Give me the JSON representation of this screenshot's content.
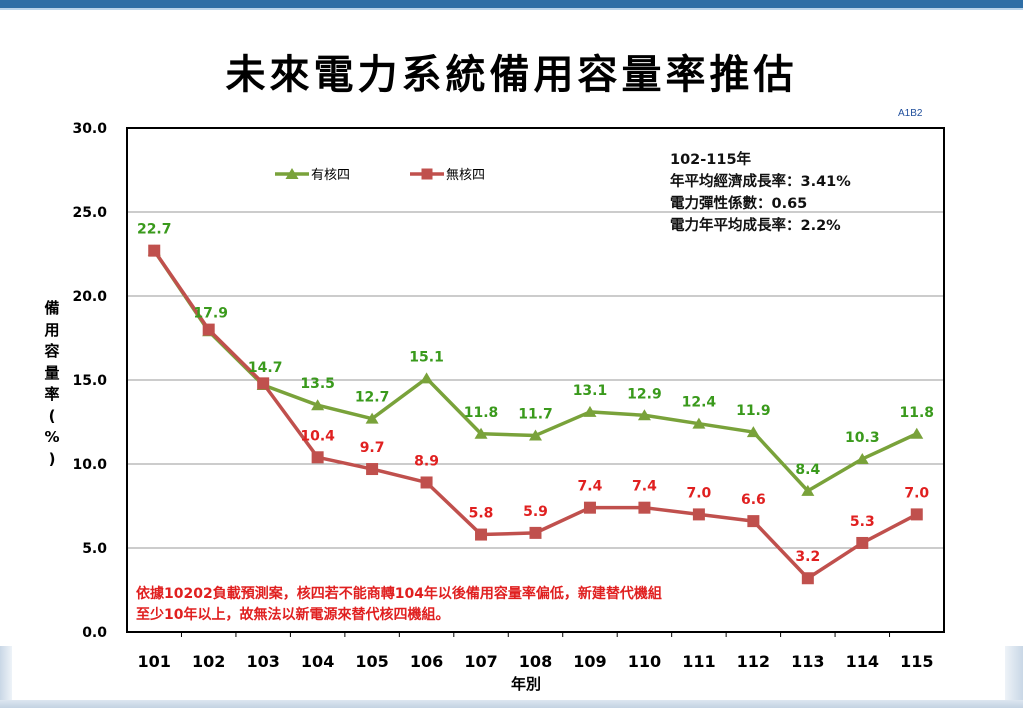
{
  "title": "未來電力系統備用容量率推估",
  "slide_code": "A1B2",
  "info_box": {
    "line1": "102-115年",
    "line2": "年平均經濟成長率：3.41%",
    "line3": "電力彈性係數：0.65",
    "line4": "電力年平均成長率：2.2%"
  },
  "note": {
    "line1": "依據10202負載預測案，核四若不能商轉104年以後備用容量率偏低，新建替代機組",
    "line2": "至少10年以上，故無法以新電源來替代核四機組。"
  },
  "colors": {
    "with_nuclear4": "#79a23a",
    "without_nuclear4": "#c0504d",
    "label_green": "#3a9a1c",
    "label_red": "#e02020"
  },
  "chart_data": {
    "type": "line",
    "title": "未來電力系統備用容量率推估",
    "xlabel": "年別",
    "ylabel": "備用容量率(%)",
    "ylim": [
      0,
      30
    ],
    "yticks": [
      "0.0",
      "5.0",
      "10.0",
      "15.0",
      "20.0",
      "25.0",
      "30.0"
    ],
    "grid": true,
    "legend_position": "top-left",
    "categories": [
      "101",
      "102",
      "103",
      "104",
      "105",
      "106",
      "107",
      "108",
      "109",
      "110",
      "111",
      "112",
      "113",
      "114",
      "115"
    ],
    "series": [
      {
        "name": "有核四",
        "values": [
          22.7,
          17.9,
          14.7,
          13.5,
          12.7,
          15.1,
          11.8,
          11.7,
          13.1,
          12.9,
          12.4,
          11.9,
          8.4,
          10.3,
          11.8
        ]
      },
      {
        "name": "無核四",
        "values": [
          22.7,
          18.0,
          14.8,
          10.4,
          9.7,
          8.9,
          5.8,
          5.9,
          7.4,
          7.4,
          7.0,
          6.6,
          3.2,
          5.3,
          7.0
        ]
      }
    ],
    "data_labels": [
      [
        "22.7",
        "17.9",
        "14.7",
        "13.5",
        "12.7",
        "15.1",
        "11.8",
        "11.7",
        "13.1",
        "12.9",
        "12.4",
        "11.9",
        "8.4",
        "10.3",
        "11.8"
      ],
      [
        "",
        "",
        "",
        "10.4",
        "9.7",
        "8.9",
        "5.8",
        "5.9",
        "7.4",
        "7.4",
        "7.0",
        "6.6",
        "3.2",
        "5.3",
        "7.0"
      ]
    ]
  }
}
